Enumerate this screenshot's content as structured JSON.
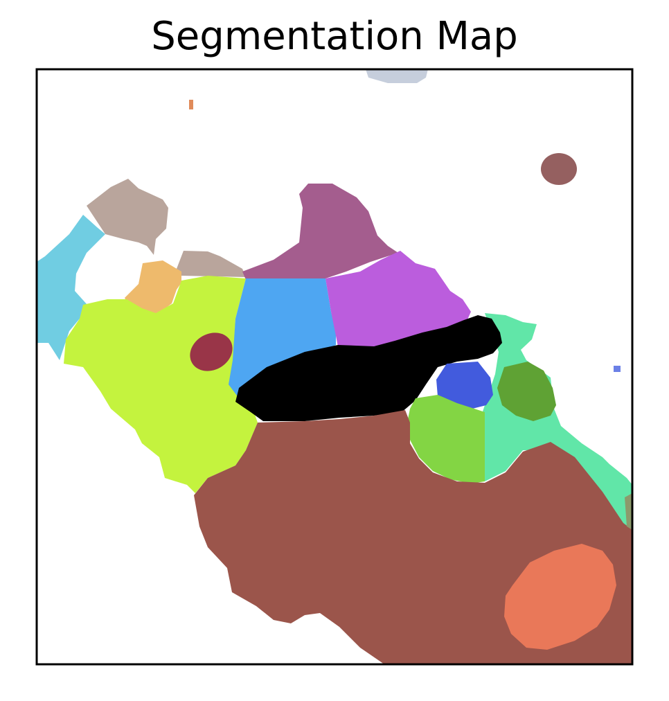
{
  "chart_data": {
    "type": "heatmap",
    "title": "Segmentation Map",
    "xlabel": "",
    "ylabel": "",
    "grid": false,
    "ticks": false,
    "background": "#ffffff",
    "frame_color": "#000000",
    "segment_colors": [
      "#c6cedc",
      "#e08b5a",
      "#956060",
      "#b9a59c",
      "#70cde2",
      "#a45d8e",
      "#eeba6c",
      "#c4f33e",
      "#4ea6f2",
      "#bb5ddd",
      "#993548",
      "#000000",
      "#61e6a8",
      "#425bdd",
      "#5fa234",
      "#83d544",
      "#9b554b",
      "#e97859",
      "#6b80e6",
      "#8c9a6c"
    ]
  }
}
